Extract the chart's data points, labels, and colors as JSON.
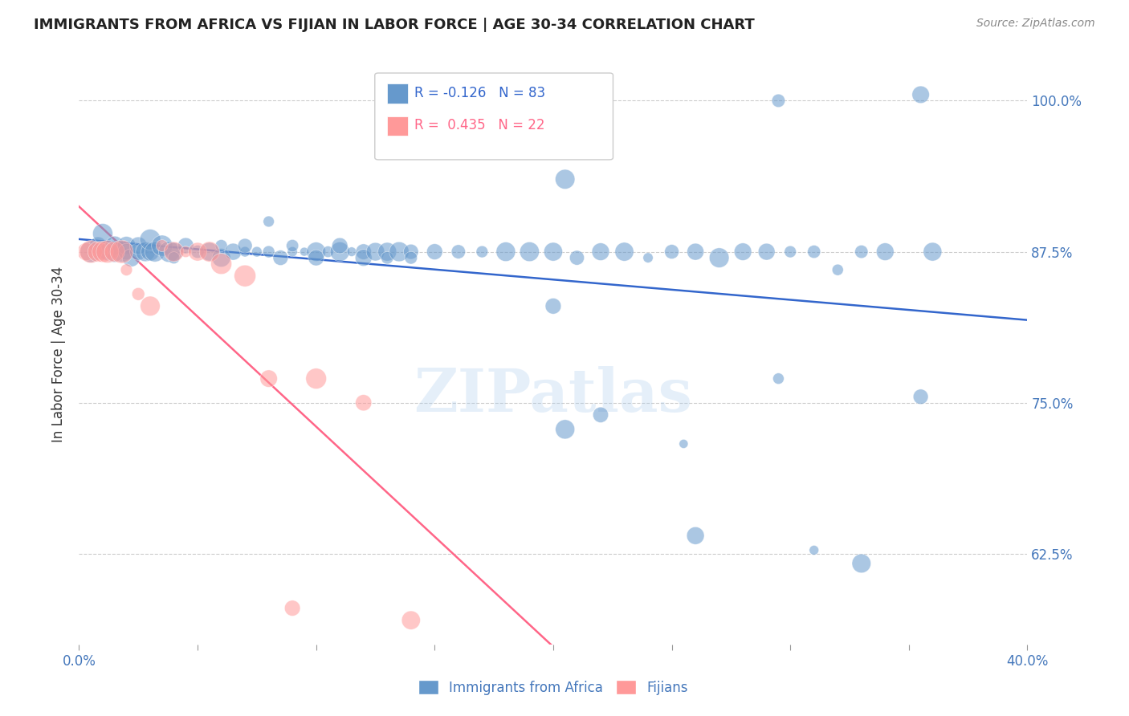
{
  "title": "IMMIGRANTS FROM AFRICA VS FIJIAN IN LABOR FORCE | AGE 30-34 CORRELATION CHART",
  "source": "Source: ZipAtlas.com",
  "ylabel": "In Labor Force | Age 30-34",
  "watermark": "ZIPatlas",
  "legend_blue_r": "R = -0.126",
  "legend_blue_n": "N = 83",
  "legend_pink_r": "R =  0.435",
  "legend_pink_n": "N = 22",
  "legend_label_blue": "Immigrants from Africa",
  "legend_label_pink": "Fijians",
  "xmin": 0.0,
  "xmax": 0.4,
  "ymin": 0.55,
  "ymax": 1.03,
  "yticks": [
    0.625,
    0.75,
    0.875,
    1.0
  ],
  "ytick_labels": [
    "62.5%",
    "75.0%",
    "87.5%",
    "100.0%"
  ],
  "blue_color": "#6699CC",
  "pink_color": "#FF9999",
  "line_blue": "#3366CC",
  "line_pink": "#FF6688",
  "axis_color": "#4477BB",
  "background": "#FFFFFF",
  "blue_x": [
    0.005,
    0.008,
    0.01,
    0.01,
    0.012,
    0.015,
    0.015,
    0.018,
    0.02,
    0.02,
    0.022,
    0.025,
    0.025,
    0.028,
    0.03,
    0.03,
    0.032,
    0.035,
    0.038,
    0.04,
    0.04,
    0.045,
    0.05,
    0.055,
    0.06,
    0.06,
    0.065,
    0.07,
    0.07,
    0.075,
    0.08,
    0.08,
    0.085,
    0.09,
    0.09,
    0.095,
    0.1,
    0.1,
    0.105,
    0.11,
    0.11,
    0.115,
    0.12,
    0.12,
    0.125,
    0.13,
    0.13,
    0.135,
    0.14,
    0.14,
    0.15,
    0.16,
    0.17,
    0.18,
    0.19,
    0.2,
    0.21,
    0.22,
    0.23,
    0.24,
    0.25,
    0.26,
    0.27,
    0.28,
    0.29,
    0.3,
    0.31,
    0.32,
    0.33,
    0.34,
    0.205,
    0.255,
    0.295,
    0.31,
    0.33,
    0.355,
    0.36,
    0.205,
    0.295,
    0.355,
    0.2,
    0.22,
    0.26
  ],
  "blue_y": [
    0.875,
    0.88,
    0.875,
    0.89,
    0.875,
    0.875,
    0.88,
    0.875,
    0.88,
    0.875,
    0.87,
    0.875,
    0.88,
    0.875,
    0.875,
    0.885,
    0.875,
    0.88,
    0.875,
    0.875,
    0.87,
    0.88,
    0.875,
    0.875,
    0.87,
    0.88,
    0.875,
    0.875,
    0.88,
    0.875,
    0.9,
    0.875,
    0.87,
    0.875,
    0.88,
    0.875,
    0.875,
    0.87,
    0.875,
    0.875,
    0.88,
    0.875,
    0.875,
    0.87,
    0.875,
    0.875,
    0.87,
    0.875,
    0.875,
    0.87,
    0.875,
    0.875,
    0.875,
    0.875,
    0.875,
    0.875,
    0.87,
    0.875,
    0.875,
    0.87,
    0.875,
    0.875,
    0.87,
    0.875,
    0.875,
    0.875,
    0.875,
    0.86,
    0.875,
    0.875,
    0.935,
    0.716,
    1.0,
    0.628,
    0.617,
    1.005,
    0.875,
    0.728,
    0.77,
    0.755,
    0.83,
    0.74,
    0.64
  ],
  "pink_x": [
    0.003,
    0.005,
    0.008,
    0.01,
    0.012,
    0.015,
    0.018,
    0.02,
    0.025,
    0.03,
    0.035,
    0.04,
    0.045,
    0.05,
    0.055,
    0.06,
    0.07,
    0.08,
    0.09,
    0.1,
    0.12,
    0.14
  ],
  "pink_y": [
    0.875,
    0.875,
    0.875,
    0.875,
    0.875,
    0.875,
    0.875,
    0.86,
    0.84,
    0.83,
    0.88,
    0.875,
    0.875,
    0.875,
    0.875,
    0.865,
    0.855,
    0.77,
    0.58,
    0.77,
    0.75,
    0.57
  ]
}
